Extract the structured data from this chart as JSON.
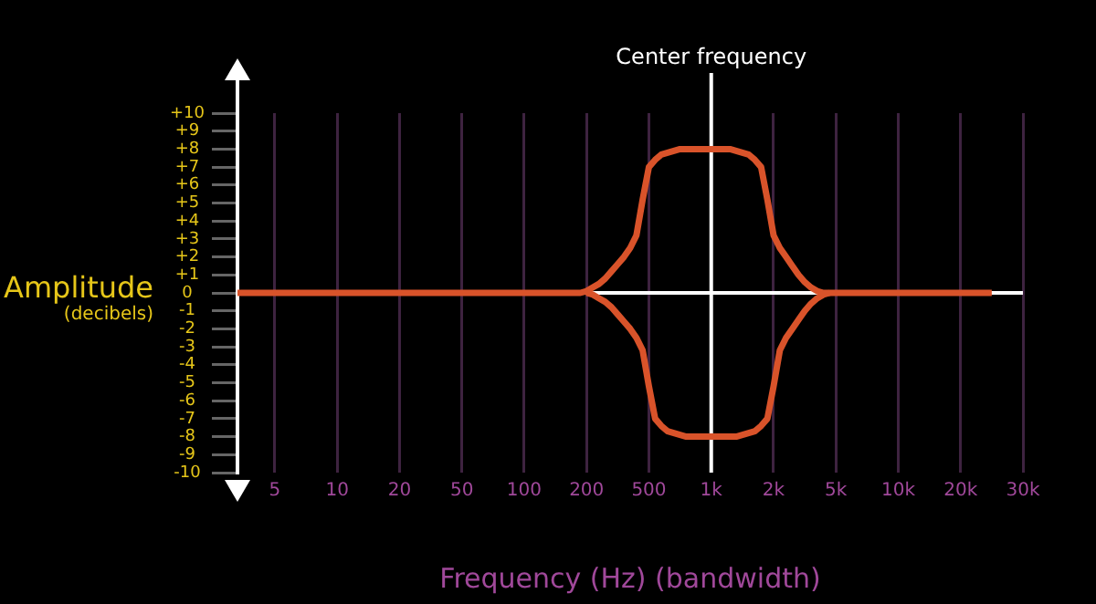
{
  "chart_data": {
    "type": "line",
    "ylabel": "Amplitude (decibels)",
    "xlabel": "Frequency (Hz) (bandwidth)",
    "categories": [
      null,
      null,
      null,
      null,
      null,
      null,
      "5",
      null,
      null,
      null,
      null,
      null,
      null,
      null,
      null,
      null,
      "10",
      null,
      null,
      null,
      null,
      null,
      null,
      null,
      null,
      null,
      "20",
      null,
      null,
      null,
      null,
      null,
      null,
      null,
      null,
      null,
      "50",
      null,
      null,
      null,
      null,
      null,
      null,
      null,
      null,
      null,
      "100",
      null,
      null,
      null,
      null,
      null,
      null,
      null,
      null,
      null,
      "200",
      null,
      null,
      null,
      null,
      null,
      null,
      null,
      null,
      null,
      "500",
      null,
      null,
      null,
      null,
      null,
      null,
      null,
      null,
      null,
      "1k",
      null,
      null,
      null,
      null,
      null,
      null,
      null,
      null,
      null,
      "2k",
      null,
      null,
      null,
      null,
      null,
      null,
      null,
      null,
      null,
      "5k",
      null,
      null,
      null,
      null,
      null,
      null,
      null,
      null,
      null,
      "10k",
      null,
      null,
      null,
      null,
      null,
      null,
      null,
      null,
      null,
      "20k",
      null,
      null,
      null,
      null,
      null,
      null,
      null,
      null,
      null,
      "30k"
    ],
    "ylim": [
      -10,
      10
    ],
    "yticks": [
      {
        "value": 10,
        "label": "+10"
      },
      {
        "value": 9,
        "label": "+9"
      },
      {
        "value": 8,
        "label": "+8"
      },
      {
        "value": 7,
        "label": "+7"
      },
      {
        "value": 6,
        "label": "+6"
      },
      {
        "value": 5,
        "label": "+5"
      },
      {
        "value": 4,
        "label": "+4"
      },
      {
        "value": 3,
        "label": "+3"
      },
      {
        "value": 2,
        "label": "+2"
      },
      {
        "value": 1,
        "label": "+1"
      },
      0,
      -1,
      -2,
      -3,
      -4,
      -5,
      -6,
      -7,
      -8,
      -9,
      -10
    ],
    "series": [
      {
        "color": "#d9532a",
        "values": [
          0,
          0,
          0,
          0,
          0,
          0,
          0,
          0,
          0,
          0,
          0,
          0,
          0,
          0,
          0,
          0,
          0,
          0,
          0,
          0,
          0,
          0,
          0,
          0,
          0,
          0,
          0,
          0,
          0,
          0,
          0,
          0,
          0,
          0,
          0,
          0,
          0,
          0,
          0,
          0,
          0,
          0,
          0,
          0,
          0,
          0,
          0,
          0,
          0,
          0,
          0,
          0,
          0,
          0,
          0,
          0,
          0.1,
          0.3,
          0.5,
          0.8,
          1.2,
          1.6,
          2,
          2.5,
          3.2,
          5.2,
          7,
          7.4,
          7.7,
          7.8,
          7.9,
          8,
          8,
          8,
          8,
          8,
          8,
          8,
          8,
          8,
          7.9,
          7.8,
          7.7,
          7.4,
          7,
          5.2,
          3.2,
          2.5,
          2,
          1.5,
          1,
          0.6,
          0.3,
          0.1,
          0,
          0,
          0,
          0,
          0,
          0,
          0,
          0,
          0,
          0,
          0,
          0,
          0,
          0,
          0,
          0,
          0,
          0,
          0,
          0,
          0,
          0,
          0,
          0,
          0,
          0,
          0,
          0,
          null,
          null,
          null,
          null,
          null
        ]
      },
      {
        "color": "#d9532a",
        "values": [
          null,
          null,
          null,
          null,
          null,
          null,
          null,
          null,
          null,
          null,
          null,
          null,
          null,
          null,
          null,
          null,
          null,
          null,
          null,
          null,
          null,
          null,
          null,
          null,
          null,
          null,
          null,
          null,
          null,
          null,
          null,
          null,
          null,
          null,
          null,
          null,
          null,
          null,
          null,
          null,
          null,
          null,
          null,
          null,
          null,
          null,
          null,
          null,
          null,
          null,
          null,
          null,
          null,
          null,
          null,
          null,
          0,
          -0.1,
          -0.3,
          -0.5,
          -0.8,
          -1.2,
          -1.6,
          -2,
          -2.5,
          -3.2,
          -5.2,
          -7,
          -7.4,
          -7.7,
          -7.8,
          -7.9,
          -8,
          -8,
          -8,
          -8,
          -8,
          -8,
          -8,
          -8,
          -8,
          -7.9,
          -7.8,
          -7.7,
          -7.4,
          -7,
          -5.2,
          -3.2,
          -2.5,
          -2,
          -1.5,
          -1,
          -0.6,
          -0.3,
          -0.1,
          0,
          null,
          null,
          null,
          null,
          null,
          null,
          null,
          null,
          null,
          null,
          null,
          null,
          null,
          null,
          null,
          null,
          null,
          null,
          null,
          null,
          null,
          null,
          null,
          null,
          null,
          null,
          null,
          null,
          null,
          null,
          null
        ]
      }
    ],
    "ref_lines": [
      {
        "axis": "y",
        "value": 0,
        "color": "#ffffff"
      },
      {
        "axis": "x",
        "value": "1k",
        "label": "Center frequency",
        "color": "#ffffff"
      }
    ],
    "grid": "x",
    "legend": false,
    "marker": "none",
    "line_style": "solid"
  }
}
